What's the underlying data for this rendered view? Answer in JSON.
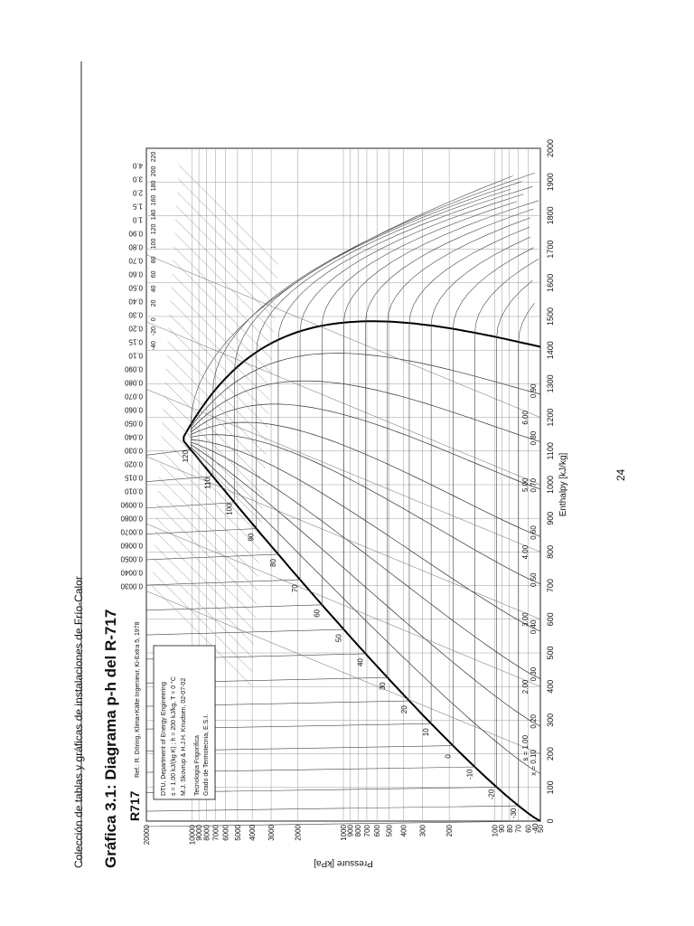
{
  "header": {
    "running_title": "Colección de tablas y gráficas de instalaciones de Frío-Calor"
  },
  "figure": {
    "caption": "Gráfica 3.1: Diagrama p-h del R-717"
  },
  "chart": {
    "refrigerant": "R717",
    "reference": "Ref.: R. Döring, Klima+Kälte Ingenieur, Ki-Extra 5, 1978",
    "axes": {
      "x_label": "Enthalpy [kJ/kg]",
      "y_label": "Pressure [kPa]",
      "x_ticks": [
        "0",
        "100",
        "200",
        "300",
        "400",
        "500",
        "600",
        "700",
        "800",
        "900",
        "1000",
        "1100",
        "1200",
        "1300",
        "1400",
        "1500",
        "1600",
        "1700",
        "1800",
        "1900",
        "2000"
      ],
      "y_ticks": [
        "50",
        "60",
        "70",
        "80",
        "90",
        "100",
        "200",
        "300",
        "400",
        "500",
        "600",
        "700",
        "800",
        "900",
        "1000",
        "2000",
        "3000",
        "4000",
        "5000",
        "6000",
        "7000",
        "8000",
        "9000",
        "10000",
        "20000"
      ]
    },
    "legend_box": {
      "lines": [
        "DTU, Department of Energy Engineering",
        "s = 1.00 kJ/(kg K) ; h = 200 kJ/kg, T = 0 °C",
        "M.J. Skovrup & H.J.H. Knudsen, 02-07-02"
      ],
      "footer": [
        "Tecnología Frigorífica",
        "Grado de Termotecnia, E.S.I."
      ]
    },
    "quality_labels": [
      "x = 0.10",
      "0.20",
      "0.30",
      "0.40",
      "0.50",
      "0.60",
      "0.70",
      "0.80",
      "0.90"
    ],
    "entropy_labels": [
      "s = 1.00",
      "2.00",
      "3.00",
      "4.00",
      "5.00",
      "6.00"
    ],
    "sat_temp_labels": [
      "-40",
      "-30",
      "-20",
      "-10",
      "0",
      "10",
      "20",
      "30",
      "40",
      "50",
      "60",
      "70",
      "80",
      "90",
      "100",
      "110",
      "120"
    ],
    "isotherm_labels": [
      "-40",
      "-20",
      "0",
      "20",
      "40",
      "60",
      "80",
      "100",
      "120",
      "140",
      "160",
      "180",
      "200",
      "220"
    ],
    "volume_labels": [
      "0.0030",
      "0.0040",
      "0.0050",
      "0.0060",
      "0.0070",
      "0.0080",
      "0.0090",
      "0.010",
      "0.015",
      "0.020",
      "0.030",
      "0.040",
      "0.050",
      "0.060",
      "0.070",
      "0.080",
      "0.090",
      "0.10",
      "0.15",
      "0.20",
      "0.30",
      "0.40",
      "0.50",
      "0.60",
      "0.70",
      "0.80",
      "0.90",
      "1.0",
      "1.5",
      "2.0",
      "3.0",
      "4.0"
    ]
  },
  "page": {
    "number": "24"
  }
}
